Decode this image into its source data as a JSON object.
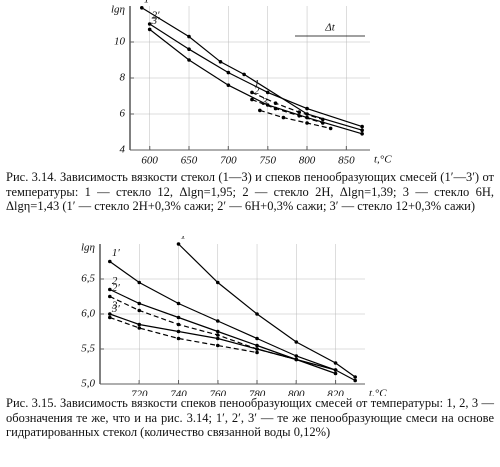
{
  "chart_data": [
    {
      "type": "line",
      "y_label": "lgη",
      "x_label": "t,°C",
      "annotation": "Δt",
      "xlim": [
        575,
        880
      ],
      "ylim": [
        4,
        12
      ],
      "xticks": [
        600,
        650,
        700,
        750,
        800,
        850
      ],
      "yticks": [
        4,
        6,
        8,
        10
      ],
      "series": [
        {
          "name": "1′",
          "color": "#000",
          "dashed": false,
          "x": [
            590,
            650,
            690,
            720,
            800,
            870
          ],
          "values": [
            11.9,
            10.3,
            8.9,
            8.2,
            6.0,
            5.1
          ]
        },
        {
          "name": "2′",
          "color": "#000",
          "dashed": false,
          "x": [
            600,
            650,
            700,
            750,
            800,
            870
          ],
          "values": [
            11.0,
            9.6,
            8.3,
            7.2,
            6.3,
            5.3
          ]
        },
        {
          "name": "3′",
          "color": "#000",
          "dashed": false,
          "x": [
            600,
            650,
            700,
            750,
            800,
            870
          ],
          "values": [
            10.7,
            9.0,
            7.6,
            6.5,
            5.8,
            4.9
          ]
        },
        {
          "name": "1",
          "color": "#000",
          "dashed": true,
          "x": [
            730,
            760,
            790,
            820
          ],
          "values": [
            7.2,
            6.6,
            6.1,
            5.7
          ]
        },
        {
          "name": "2",
          "color": "#000",
          "dashed": true,
          "x": [
            730,
            760,
            790,
            820
          ],
          "values": [
            6.8,
            6.3,
            5.9,
            5.5
          ]
        },
        {
          "name": "3",
          "color": "#000",
          "dashed": true,
          "x": [
            740,
            770,
            800,
            830
          ],
          "values": [
            6.2,
            5.8,
            5.5,
            5.2
          ]
        }
      ],
      "caption": "Рис. 3.14. Зависимость вязкости стекол (1—3) и спеков пенообразующих смесей (1′—3′) от температуры: 1 — стекло 12, Δlgη=1,95; 2 — стекло 2Н, Δlgη=1,39; 3 — стекло 6Н, Δlgη=1,43 (1′ — стекло 2Н+0,3% сажи; 2′ — 6Н+0,3% сажи; 3′ — стекло 12+0,3% сажи)"
    },
    {
      "type": "line",
      "y_label": "lgη",
      "x_label": "t,°C",
      "xlim": [
        700,
        835
      ],
      "ylim": [
        5.0,
        7.0
      ],
      "xticks": [
        720,
        740,
        760,
        780,
        800,
        820
      ],
      "yticks": [
        {
          "value": 5.0,
          "label": "5,0"
        },
        {
          "value": 5.5,
          "label": "5,5"
        },
        {
          "value": 6.0,
          "label": "6,0"
        },
        {
          "value": 6.5,
          "label": "6,5"
        }
      ],
      "series": [
        {
          "name": "1",
          "color": "#000",
          "dashed": false,
          "x": [
            740,
            760,
            780,
            800,
            820,
            830
          ],
          "values": [
            7.0,
            6.45,
            6.0,
            5.6,
            5.3,
            5.1
          ]
        },
        {
          "name": "1′",
          "color": "#000",
          "dashed": false,
          "x": [
            705,
            720,
            740,
            760,
            780,
            800,
            820,
            830
          ],
          "values": [
            6.75,
            6.45,
            6.15,
            5.9,
            5.65,
            5.4,
            5.2,
            5.05
          ]
        },
        {
          "name": "2",
          "color": "#000",
          "dashed": false,
          "x": [
            705,
            720,
            740,
            760,
            780,
            800,
            820
          ],
          "values": [
            6.35,
            6.15,
            5.95,
            5.75,
            5.55,
            5.35,
            5.15
          ]
        },
        {
          "name": "2′",
          "color": "#000",
          "dashed": true,
          "x": [
            705,
            720,
            740,
            760,
            780,
            800
          ],
          "values": [
            6.25,
            6.05,
            5.85,
            5.7,
            5.5,
            5.35
          ]
        },
        {
          "name": "3",
          "color": "#000",
          "dashed": false,
          "x": [
            705,
            720,
            740,
            760,
            780,
            800,
            820
          ],
          "values": [
            6.0,
            5.85,
            5.75,
            5.65,
            5.5,
            5.35,
            5.2
          ]
        },
        {
          "name": "3′",
          "color": "#000",
          "dashed": true,
          "x": [
            705,
            720,
            740,
            760,
            780
          ],
          "values": [
            5.95,
            5.8,
            5.65,
            5.55,
            5.45
          ]
        }
      ],
      "caption": "Рис. 3.15. Зависимость вязкости спеков пенообразующих смесей от температуры: 1, 2, 3 — обозначения те же, что и на рис. 3.14; 1′, 2′, 3′ — те же пенообразующие смеси на основе гидратированных стекол (количество связанной воды 0,12%)"
    }
  ]
}
